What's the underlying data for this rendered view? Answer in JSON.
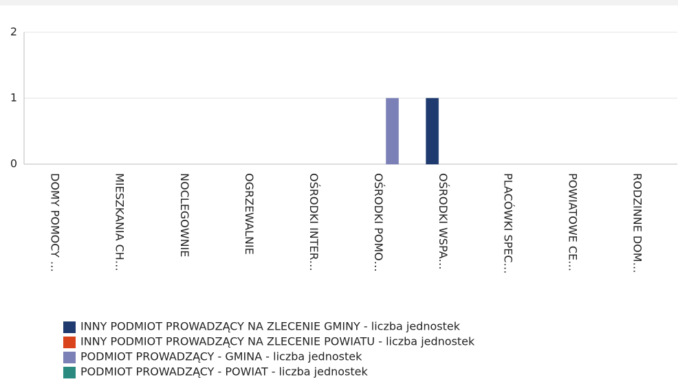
{
  "chart_data": {
    "type": "bar",
    "categories": [
      "DOMY POMOCY …",
      "MIESZKANIA CH…",
      "NOCLEGOWNIE",
      "OGRZEWALNIE",
      "OŚRODKI INTER…",
      "OŚRODKI POMO…",
      "OŚRODKI WSPA…",
      "PLACÓWKI SPEC…",
      "POWIATOWE CE…",
      "RODZINNE DOM…"
    ],
    "series": [
      {
        "name": "INNY PODMIOT PROWADZĄCY NA ZLECENIE GMINY - liczba jednostek",
        "color": "#1f3a6e",
        "values": [
          0,
          0,
          0,
          0,
          0,
          0,
          1,
          0,
          0,
          0
        ]
      },
      {
        "name": "INNY PODMIOT PROWADZĄCY NA ZLECENIE POWIATU - liczba jednostek",
        "color": "#d9441c",
        "values": [
          0,
          0,
          0,
          0,
          0,
          0,
          0,
          0,
          0,
          0
        ]
      },
      {
        "name": "PODMIOT PROWADZĄCY - GMINA - liczba jednostek",
        "color": "#7b80b6",
        "values": [
          0,
          0,
          0,
          0,
          0,
          1,
          0,
          0,
          0,
          0
        ]
      },
      {
        "name": "PODMIOT PROWADZĄCY - POWIAT - liczba jednostek",
        "color": "#2a8a80",
        "values": [
          0,
          0,
          0,
          0,
          0,
          0,
          0,
          0,
          0,
          0
        ]
      }
    ],
    "ylim": [
      0,
      2
    ],
    "yticks": [
      0,
      1,
      2
    ],
    "grid": true
  }
}
